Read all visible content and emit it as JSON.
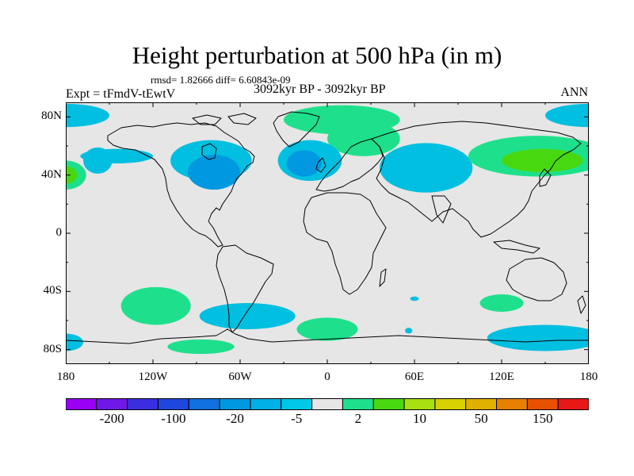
{
  "header": {
    "title": "Height perturbation at 500 hPa (in m)",
    "stats": "rmsd= 1.82666 diff= 6.60843e-09",
    "expt": "Expt = tFmdV-tEwtV",
    "period": "3092kyr BP - 3092kyr BP",
    "season": "ANN"
  },
  "map": {
    "projection": "cylindrical equidistant",
    "lon_range": [
      -180,
      180
    ],
    "lat_range": [
      -90,
      90
    ],
    "lat_ticks": [
      {
        "value": 80,
        "label": "80N"
      },
      {
        "value": 40,
        "label": "40N"
      },
      {
        "value": 0,
        "label": "0"
      },
      {
        "value": -40,
        "label": "40S"
      },
      {
        "value": -80,
        "label": "80S"
      }
    ],
    "lon_ticks": [
      {
        "value": -180,
        "label": "180"
      },
      {
        "value": -120,
        "label": "120W"
      },
      {
        "value": -60,
        "label": "60W"
      },
      {
        "value": 0,
        "label": "0"
      },
      {
        "value": 60,
        "label": "60E"
      },
      {
        "value": 120,
        "label": "120E"
      },
      {
        "value": 180,
        "label": "180"
      }
    ],
    "background_color": "#e6e6e6",
    "anomaly_regions": [
      {
        "name": "arctic-pacific-west",
        "lon": -180,
        "lat": 81,
        "rlon": 30,
        "rlat": 8,
        "level": -5,
        "color": "#00bfe0"
      },
      {
        "name": "north-pacific-east-green",
        "lon": -180,
        "lat": 40,
        "rlon": 14,
        "rlat": 10,
        "level": 2,
        "color": "#1ee08c"
      },
      {
        "name": "north-pacific-east-core",
        "lon": -180,
        "lat": 40,
        "rlon": 8,
        "rlat": 6,
        "level": 10,
        "color": "#48d810"
      },
      {
        "name": "north-pacific-east-cyan",
        "lon": -158,
        "lat": 50,
        "rlon": 10,
        "rlat": 9,
        "level": -5,
        "color": "#00bfe0"
      },
      {
        "name": "pacific-cyan-band",
        "lon": -145,
        "lat": 53,
        "rlon": 25,
        "rlat": 5,
        "level": -5,
        "color": "#00bfe0"
      },
      {
        "name": "north-america-low",
        "lon": -80,
        "lat": 50,
        "rlon": 28,
        "rlat": 14,
        "level": -5,
        "color": "#00bfe0"
      },
      {
        "name": "north-america-low-core",
        "lon": -78,
        "lat": 42,
        "rlon": 18,
        "rlat": 12,
        "level": -20,
        "color": "#0098e0"
      },
      {
        "name": "greenland-arctic-high",
        "lon": 10,
        "lat": 78,
        "rlon": 40,
        "rlat": 10,
        "level": 2,
        "color": "#1ee08c"
      },
      {
        "name": "scandinavia-high",
        "lon": 25,
        "lat": 65,
        "rlon": 25,
        "rlat": 12,
        "level": 2,
        "color": "#1ee08c"
      },
      {
        "name": "north-atlantic-low",
        "lon": -12,
        "lat": 50,
        "rlon": 22,
        "rlat": 14,
        "level": -5,
        "color": "#00bfe0"
      },
      {
        "name": "north-atlantic-low-core",
        "lon": -16,
        "lat": 48,
        "rlon": 12,
        "rlat": 9,
        "level": -20,
        "color": "#0098e0"
      },
      {
        "name": "eurasia-low",
        "lon": 68,
        "lat": 45,
        "rlon": 32,
        "rlat": 17,
        "level": -5,
        "color": "#00bfe0"
      },
      {
        "name": "east-asia-pacific-high",
        "lon": 145,
        "lat": 53,
        "rlon": 48,
        "rlat": 14,
        "level": 2,
        "color": "#1ee08c"
      },
      {
        "name": "east-asia-pacific-core",
        "lon": 148,
        "lat": 50,
        "rlon": 28,
        "rlat": 8,
        "level": 10,
        "color": "#48d810"
      },
      {
        "name": "arctic-pacific-east",
        "lon": 180,
        "lat": 81,
        "rlon": 30,
        "rlat": 8,
        "level": -5,
        "color": "#00bfe0"
      },
      {
        "name": "south-pacific-high",
        "lon": -118,
        "lat": -50,
        "rlon": 24,
        "rlat": 13,
        "level": 2,
        "color": "#1ee08c"
      },
      {
        "name": "drake-passage-low",
        "lon": -55,
        "lat": -57,
        "rlon": 33,
        "rlat": 9,
        "level": -5,
        "color": "#00bfe0"
      },
      {
        "name": "antarctic-pacific-high",
        "lon": -87,
        "lat": -78,
        "rlon": 23,
        "rlat": 5,
        "level": 2,
        "color": "#1ee08c"
      },
      {
        "name": "south-atlantic-high",
        "lon": 0,
        "lat": -66,
        "rlon": 21,
        "rlat": 8,
        "level": 2,
        "color": "#1ee08c"
      },
      {
        "name": "indian-ocean-small-low",
        "lon": 60,
        "lat": -45,
        "rlon": 3,
        "rlat": 1.5,
        "level": -5,
        "color": "#00bfe0"
      },
      {
        "name": "antarctic-indian-small-low",
        "lon": 56,
        "lat": -67,
        "rlon": 2.5,
        "rlat": 2,
        "level": -5,
        "color": "#00bfe0"
      },
      {
        "name": "south-indian-high",
        "lon": 120,
        "lat": -48,
        "rlon": 15,
        "rlat": 6,
        "level": 2,
        "color": "#1ee08c"
      },
      {
        "name": "antarctic-east-low",
        "lon": 150,
        "lat": -72,
        "rlon": 40,
        "rlat": 9,
        "level": -5,
        "color": "#00bfe0"
      },
      {
        "name": "antarctic-west-wrap",
        "lon": -180,
        "lat": -75,
        "rlon": 12,
        "rlat": 6,
        "level": -5,
        "color": "#00bfe0"
      }
    ]
  },
  "colorbar": {
    "colors": [
      "#9b00f5",
      "#7018e8",
      "#3a2ee0",
      "#2046e0",
      "#1070e0",
      "#0098e0",
      "#00b0e6",
      "#00c8e6",
      "#e6e6e6",
      "#1ee08c",
      "#48d810",
      "#a8e010",
      "#d8d000",
      "#e0b000",
      "#e88000",
      "#e85000",
      "#e81818"
    ],
    "tick_labels": [
      "-200",
      "-100",
      "-20",
      "-5",
      "2",
      "10",
      "50",
      "150"
    ]
  }
}
